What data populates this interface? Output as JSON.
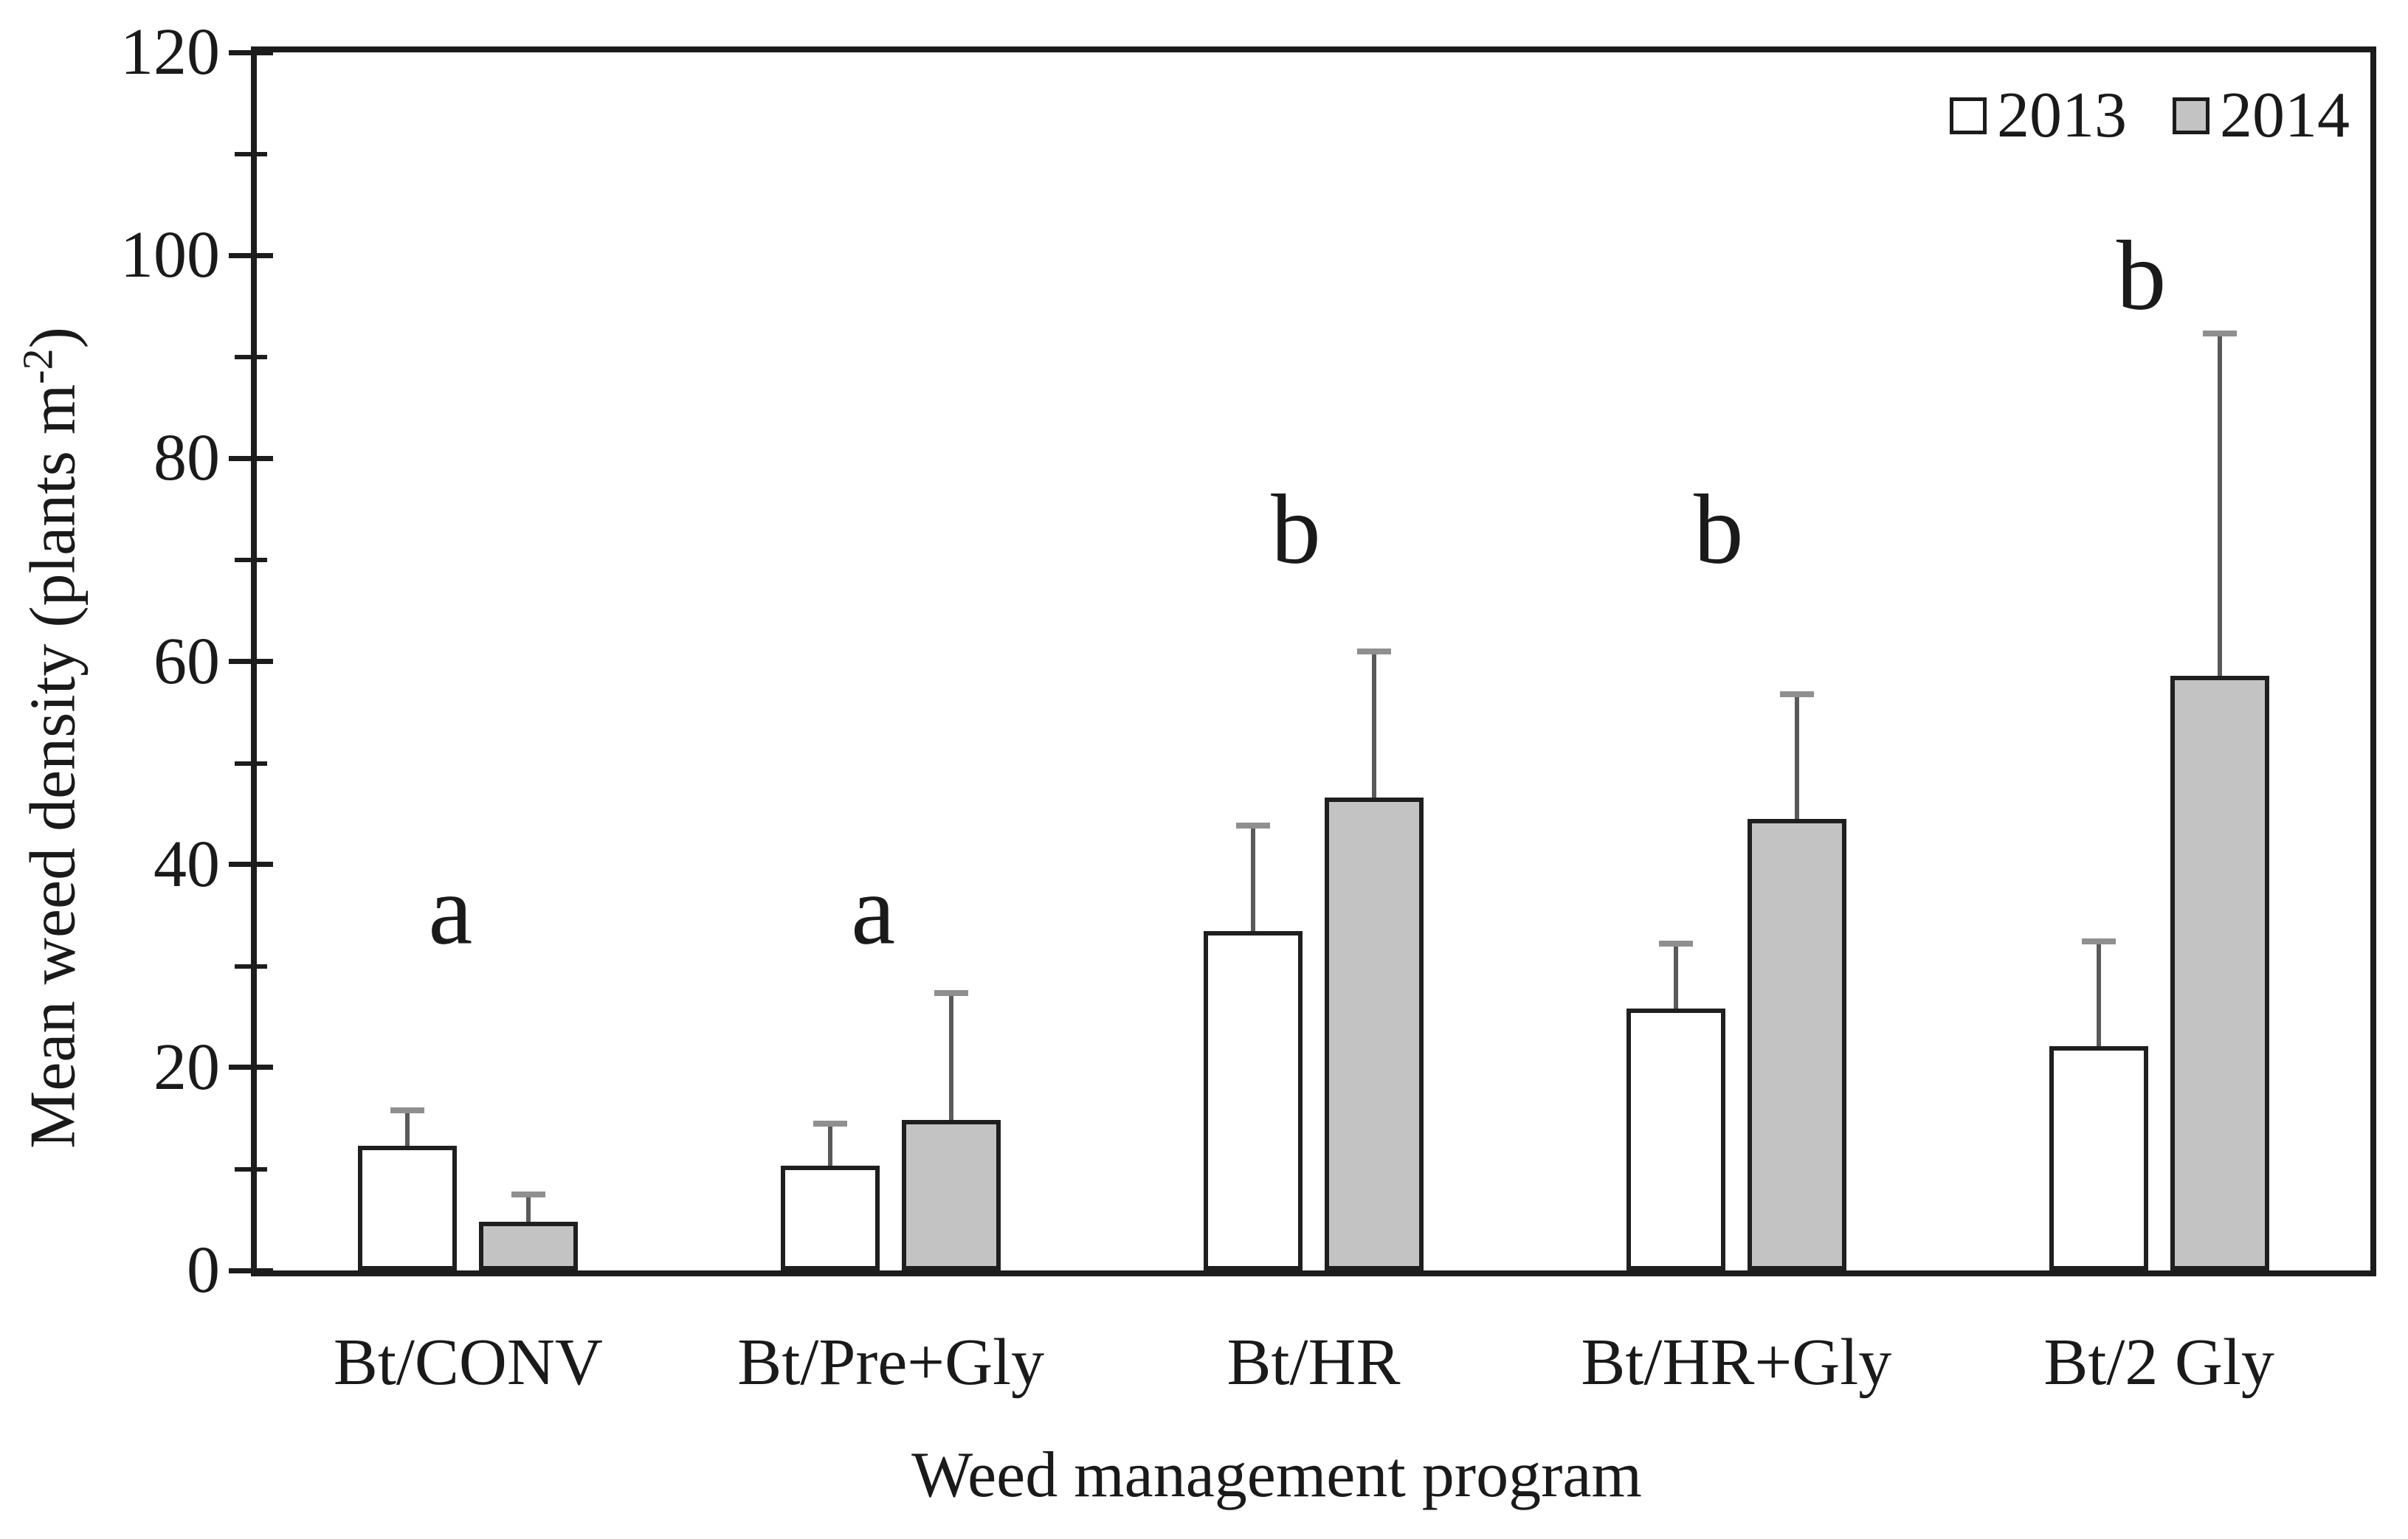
{
  "chart_data": {
    "type": "bar",
    "title": "",
    "xlabel": "Weed management program",
    "ylabel_prefix": "Mean weed density (plants m",
    "ylabel_sup": "-2",
    "ylabel_suffix": ")",
    "categories": [
      "Bt/CONV",
      "Bt/Pre+Gly",
      "Bt/HR",
      "Bt/HR+Gly",
      "Bt/2 Gly"
    ],
    "series": [
      {
        "name": "2013",
        "fill": "#ffffff",
        "values": [
          12.3,
          10.3,
          33.4,
          25.8,
          22.1
        ],
        "errors_plus": [
          3.5,
          4.2,
          10.4,
          6.4,
          10.3
        ]
      },
      {
        "name": "2014",
        "fill": "#c3c3c3",
        "values": [
          4.8,
          14.8,
          46.6,
          44.5,
          58.6
        ],
        "errors_plus": [
          2.7,
          12.5,
          14.4,
          12.3,
          33.7
        ]
      }
    ],
    "annotations": [
      {
        "label": "a",
        "group_index": 0,
        "y": 35.5
      },
      {
        "label": "a",
        "group_index": 1,
        "y": 35.5
      },
      {
        "label": "b",
        "group_index": 2,
        "y": 73
      },
      {
        "label": "b",
        "group_index": 3,
        "y": 73
      },
      {
        "label": "b",
        "group_index": 4,
        "y": 98
      }
    ],
    "ylim": [
      0,
      120
    ],
    "ytick_major": 20,
    "ytick_minor": 10,
    "grid": false,
    "legend_position": "top-right"
  },
  "legend": {
    "items": [
      {
        "label": "2013",
        "fill": "#ffffff"
      },
      {
        "label": "2014",
        "fill": "#c3c3c3"
      }
    ]
  },
  "colors": {
    "bar_2013": "#ffffff",
    "bar_2014": "#c3c3c3",
    "bar_border": "#1f1f1f",
    "axis_frame": "#1c1c1c",
    "error_stem": "#5a5a5a",
    "error_cap": "#8f8f8f",
    "text": "#1a1a1a",
    "background": "#ffffff"
  }
}
